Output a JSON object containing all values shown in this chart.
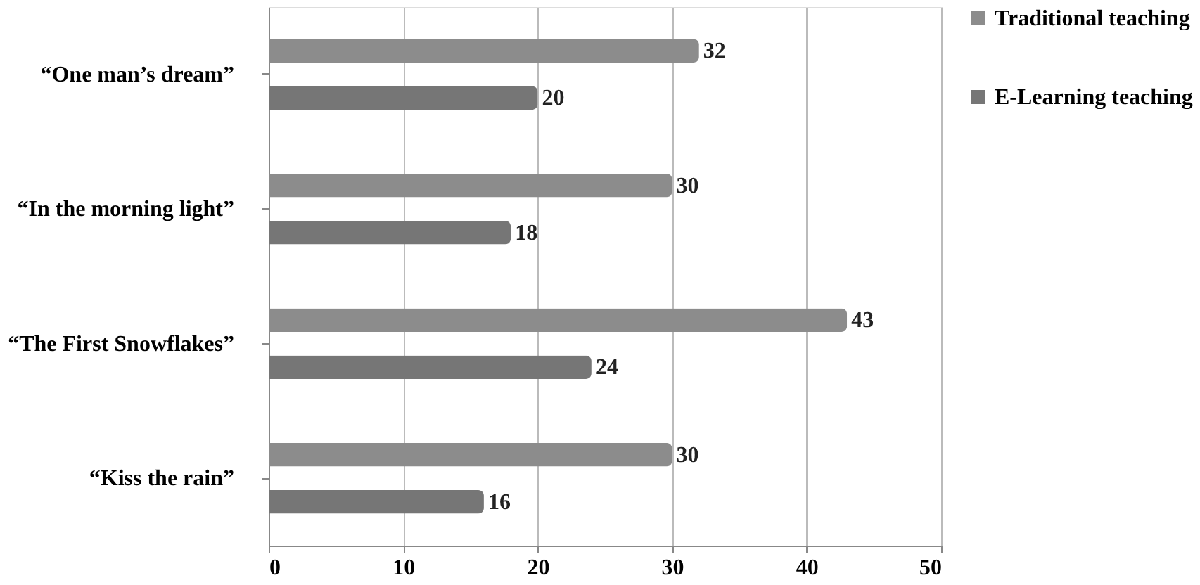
{
  "chart_data": {
    "type": "bar",
    "orientation": "horizontal",
    "categories": [
      "“One man’s dream”",
      "“In the morning light”",
      "“The First Snowflakes”",
      "“Kiss the rain”"
    ],
    "series": [
      {
        "name": "Traditional teaching",
        "color": "#8c8c8c",
        "values": [
          32,
          30,
          43,
          30
        ]
      },
      {
        "name": "E-Learning teaching",
        "color": "#767676",
        "values": [
          20,
          18,
          24,
          16
        ]
      }
    ],
    "xlim": [
      0,
      50
    ],
    "xticks": [
      0,
      10,
      20,
      30,
      40,
      50
    ],
    "grid": "x",
    "legend": "right",
    "data_labels": true
  }
}
